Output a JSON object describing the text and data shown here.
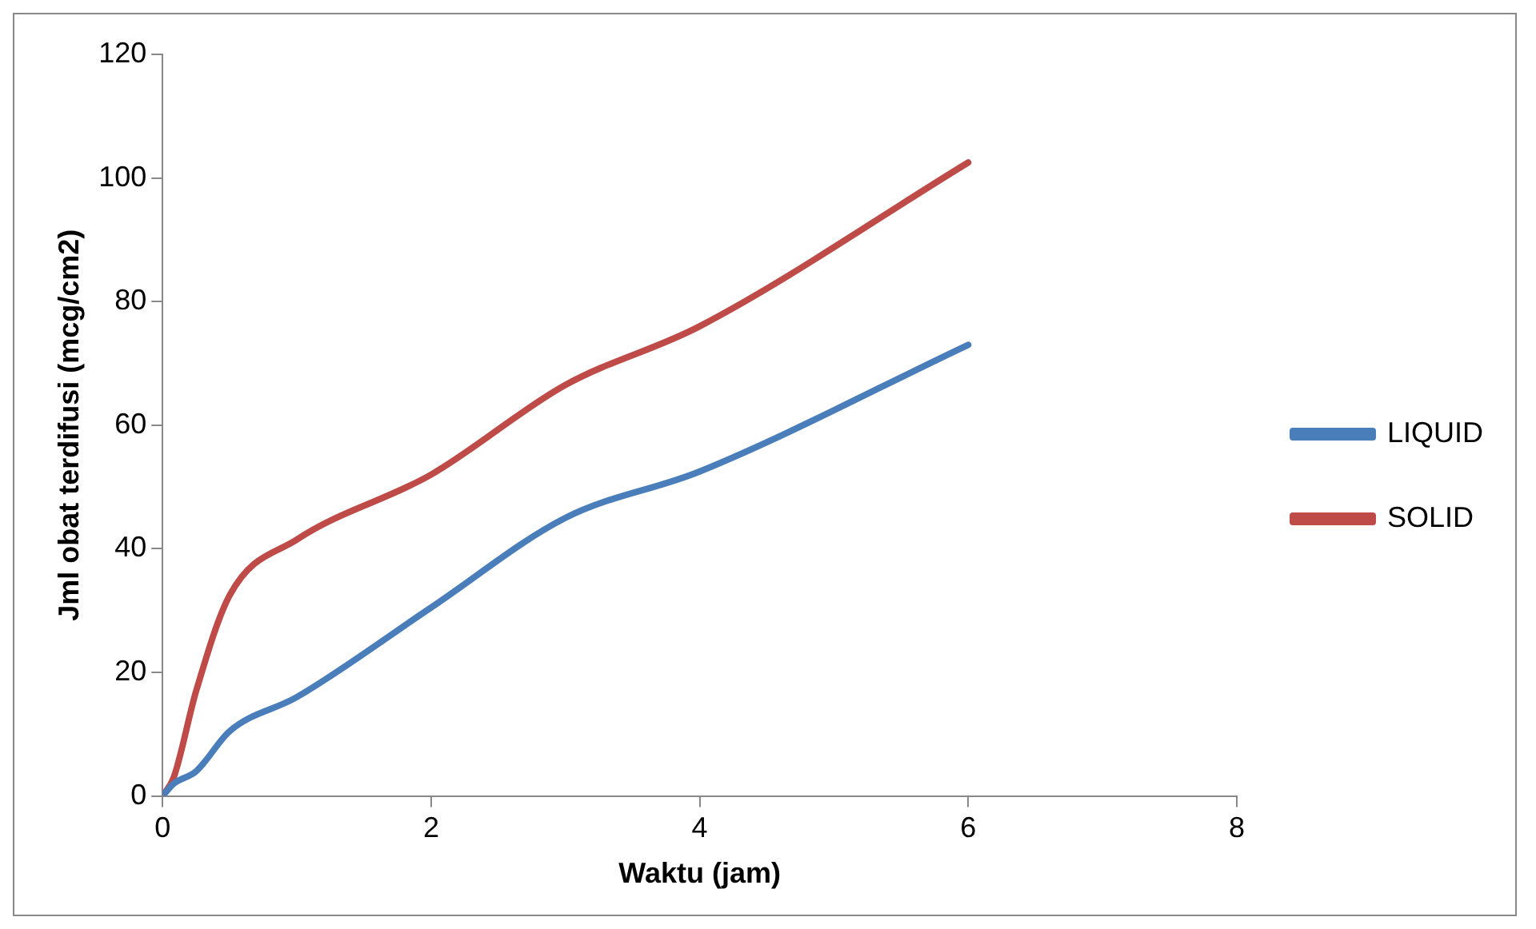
{
  "chart_data": {
    "type": "line",
    "xlabel": "Waktu (jam)",
    "ylabel": "Jml obat terdifusi (mcg/cm2)",
    "x": [
      0,
      0.083,
      0.25,
      0.5,
      1,
      2,
      3,
      4,
      6
    ],
    "series": [
      {
        "name": "LIQUID",
        "color": "#4a7ebb",
        "values": [
          0,
          2,
          4,
          10.5,
          16,
          30.5,
          45,
          52.5,
          73
        ]
      },
      {
        "name": "SOLID",
        "color": "#be4b48",
        "values": [
          0,
          3,
          17,
          32.5,
          41.5,
          52,
          66.5,
          76,
          102.5
        ]
      }
    ],
    "xlim": [
      0,
      8
    ],
    "xticks": [
      0,
      2,
      4,
      6,
      8
    ],
    "ylim": [
      0,
      120
    ],
    "yticks": [
      0,
      20,
      40,
      60,
      80,
      100,
      120
    ],
    "grid": false,
    "legend": "right",
    "marker": "none",
    "line_style": "solid"
  }
}
